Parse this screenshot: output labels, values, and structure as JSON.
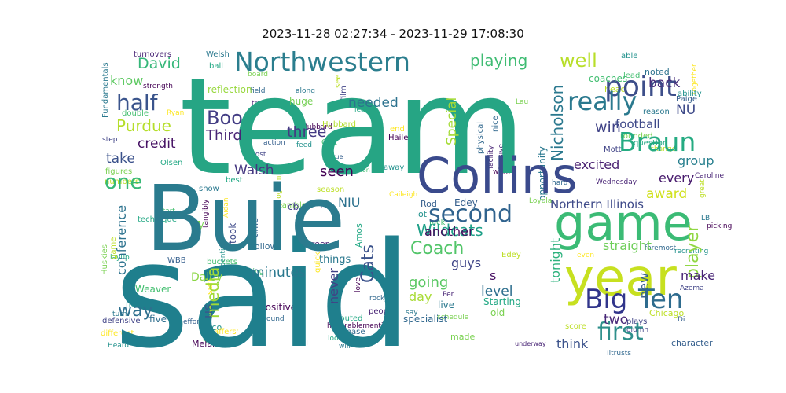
{
  "title": "2023-11-28 02:27:34 - 2023-11-29 17:08:30",
  "words": [
    {
      "text": "team",
      "color": "#26a584"
    },
    {
      "text": "said",
      "color": "#1f7f8d"
    },
    {
      "text": "Buie",
      "color": "#2a7b8e"
    },
    {
      "text": "Collins",
      "color": "#3a4a8c"
    },
    {
      "text": "game",
      "color": "#3bbb75"
    },
    {
      "text": "year",
      "color": "#c7e020"
    },
    {
      "text": "Northwestern",
      "color": "#2b7e8e"
    },
    {
      "text": "point",
      "color": "#3d4e8a"
    },
    {
      "text": "Big",
      "color": "#31358b"
    },
    {
      "text": "Ten",
      "color": "#2e6b8e"
    },
    {
      "text": "Braun",
      "color": "#25ab82"
    },
    {
      "text": "really",
      "color": "#2a798e"
    },
    {
      "text": "half",
      "color": "#3a548c"
    },
    {
      "text": "second",
      "color": "#30638e"
    },
    {
      "text": "first",
      "color": "#2e8f8b"
    },
    {
      "text": "Boo",
      "color": "#433d84"
    },
    {
      "text": "one",
      "color": "#38b977"
    },
    {
      "text": "Coach",
      "color": "#52c569"
    },
    {
      "text": "Cats",
      "color": "#3b528b"
    },
    {
      "text": "media",
      "color": "#a2da37"
    },
    {
      "text": "Purdue",
      "color": "#b5de2b"
    },
    {
      "text": "playing",
      "color": "#3fbc73"
    },
    {
      "text": "well",
      "color": "#b8de29"
    },
    {
      "text": "Third",
      "color": "#482475"
    },
    {
      "text": "Nicholson",
      "color": "#2a788e"
    },
    {
      "text": "player",
      "color": "#90d743"
    },
    {
      "text": "Wildcats",
      "color": "#1fa088"
    },
    {
      "text": "David",
      "color": "#35b779"
    },
    {
      "text": "three",
      "color": "#443a83"
    },
    {
      "text": "win",
      "color": "#414487"
    },
    {
      "text": "football",
      "color": "#3e4989"
    },
    {
      "text": "excited",
      "color": "#481f70"
    },
    {
      "text": "award",
      "color": "#d0e11c"
    },
    {
      "text": "seen",
      "color": "#440154"
    },
    {
      "text": "needed",
      "color": "#2c728e"
    },
    {
      "text": "Special",
      "color": "#a5db36"
    },
    {
      "text": "credit",
      "color": "#471365"
    },
    {
      "text": "Walsh",
      "color": "#453781"
    },
    {
      "text": "take",
      "color": "#3b528b"
    },
    {
      "text": "know",
      "color": "#5ec962"
    },
    {
      "text": "NU",
      "color": "#3e4a89"
    },
    {
      "text": "back",
      "color": "#472c7a"
    },
    {
      "text": "group",
      "color": "#277f8e"
    },
    {
      "text": "every",
      "color": "#481b6d"
    },
    {
      "text": "straight",
      "color": "#6ece58"
    },
    {
      "text": "Northern Illinois",
      "color": "#3e4a89"
    },
    {
      "text": "conference",
      "color": "#2c728e"
    },
    {
      "text": "minutes",
      "color": "#2a788e"
    },
    {
      "text": "guys",
      "color": "#404688"
    },
    {
      "text": "another",
      "color": "#460b5e"
    },
    {
      "text": "us",
      "color": "#3a548c"
    },
    {
      "text": "way",
      "color": "#2e6f8e"
    },
    {
      "text": "never",
      "color": "#424186"
    },
    {
      "text": "going",
      "color": "#5ac864"
    },
    {
      "text": "level",
      "color": "#2e6f8e"
    },
    {
      "text": "day",
      "color": "#a8db34"
    },
    {
      "text": "tonight",
      "color": "#2db27d"
    },
    {
      "text": "think",
      "color": "#3b528b"
    },
    {
      "text": "two",
      "color": "#482878"
    },
    {
      "text": "new",
      "color": "#355f8d"
    },
    {
      "text": "make",
      "color": "#482576"
    },
    {
      "text": "NIU",
      "color": "#2c718e"
    },
    {
      "text": "Daley",
      "color": "#8bd646"
    },
    {
      "text": "took",
      "color": "#3e4a89"
    },
    {
      "text": "five",
      "color": "#2e6e8e"
    },
    {
      "text": "s",
      "color": "#471063"
    },
    {
      "text": "specialist",
      "color": "#31688e"
    },
    {
      "text": "reflection",
      "color": "#98d83e"
    },
    {
      "text": "coaches",
      "color": "#42be71"
    },
    {
      "text": "noted",
      "color": "#2c728e"
    },
    {
      "text": "huge",
      "color": "#75d054"
    },
    {
      "text": "Hubbard",
      "color": "#b2dd2c"
    },
    {
      "text": "Fundamentals",
      "color": "#2a788e"
    }
  ],
  "small_words": [
    "turnovers",
    "Welsh",
    "ball",
    "board",
    "see",
    "film",
    "Edey",
    "able",
    "lead",
    "together",
    "strength",
    "field",
    "truly",
    "along",
    "least",
    "Lau",
    "head",
    "Mott",
    "Paige",
    "ability",
    "double",
    "Ryan",
    "Hubbard",
    "nice",
    "offensive",
    "reason",
    "question",
    "rounded",
    "change",
    "step",
    "action",
    "feed",
    "Coit",
    "end",
    "Hailey",
    "physical",
    "facility",
    "opportunity",
    "Olsen",
    "figures",
    "numbers",
    "post",
    "true",
    "away",
    "Uncommon",
    "Caileigh",
    "work",
    "hard",
    "Wednesday",
    "show",
    "best",
    "Rambler",
    "season",
    "Tip",
    "Rod",
    "lot",
    "Jack",
    "even",
    "picking",
    "foremost",
    "Caroline",
    "LB",
    "technique",
    "Ty",
    "program",
    "cb",
    "time",
    "recruiting",
    "start",
    "Aidan",
    "tangibly",
    "Follow",
    "career",
    "things",
    "Amos",
    "Loyola",
    "Edey",
    "column",
    "WBB",
    "identity",
    "morning",
    "quick",
    "love",
    "rocky",
    "Per",
    "live",
    "Starting",
    "old",
    "great",
    "Azema",
    "Di",
    "nobody",
    "Weaver",
    "sure",
    "positive",
    "around",
    "people",
    "say",
    "shouted",
    "schedule",
    "Chicago",
    "defensive",
    "effort",
    "Coco",
    "buckets",
    "staffers'",
    "honorablementions",
    "release",
    "foul",
    "will",
    "look",
    "made",
    "score",
    "plays",
    "character",
    "Heard",
    "Stay",
    "different",
    "Melannie",
    "Iltrusts",
    "underway",
    "turn",
    "layup",
    "Huskies",
    "game"
  ]
}
